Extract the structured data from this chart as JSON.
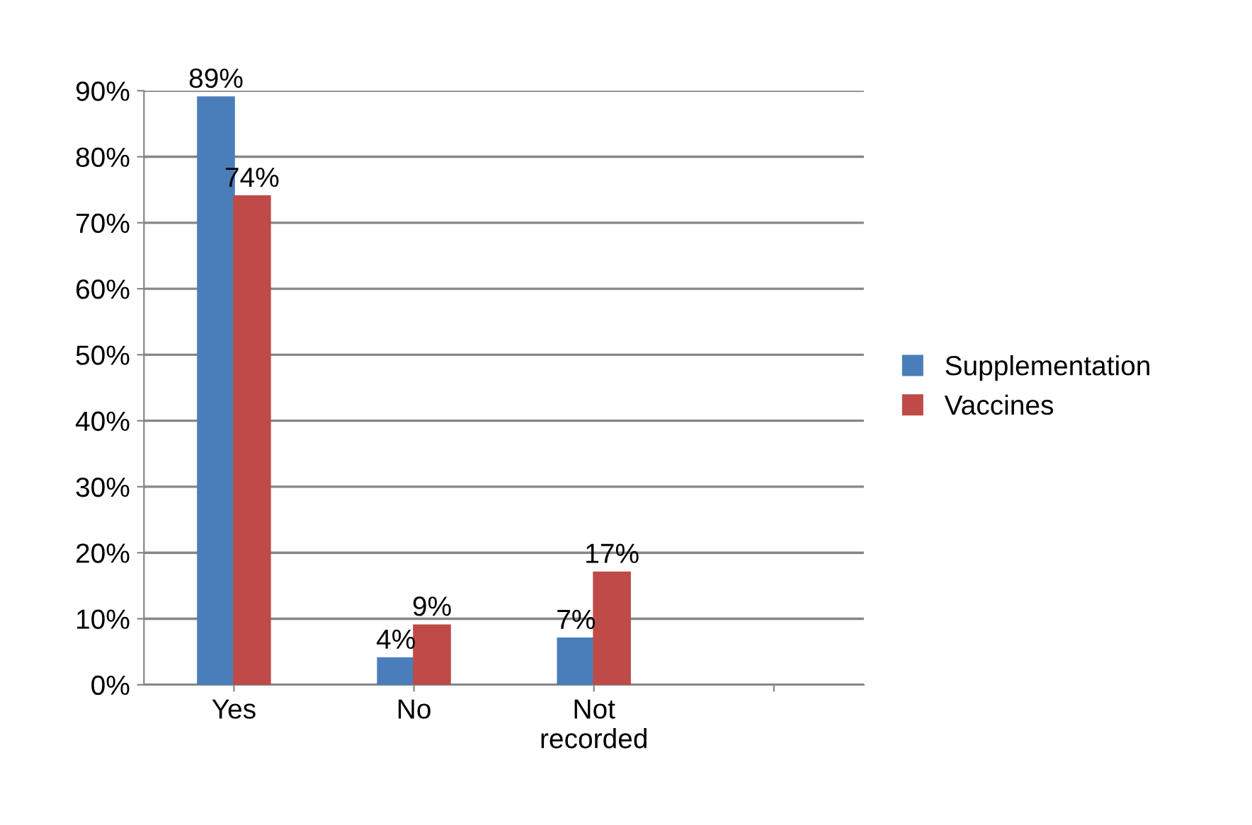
{
  "chart_data": {
    "type": "bar",
    "categories": [
      "Yes",
      "No",
      "Not recorded",
      null
    ],
    "series": [
      {
        "name": "Supplementation",
        "color": "#4a7ebb",
        "values": [
          89,
          4,
          7,
          null
        ],
        "value_labels": [
          "89%",
          "4%",
          "7%",
          null
        ]
      },
      {
        "name": "Vaccines",
        "color": "#be4b48",
        "values": [
          74,
          9,
          17,
          null
        ],
        "value_labels": [
          "74%",
          "9%",
          "17%",
          null
        ]
      }
    ],
    "ylim": [
      0,
      90
    ],
    "yticks": [
      {
        "value": 0,
        "label": "0%"
      },
      {
        "value": 10,
        "label": "10%"
      },
      {
        "value": 20,
        "label": "20%"
      },
      {
        "value": 30,
        "label": "30%"
      },
      {
        "value": 40,
        "label": "40%"
      },
      {
        "value": 50,
        "label": "50%"
      },
      {
        "value": 60,
        "label": "60%"
      },
      {
        "value": 70,
        "label": "70%"
      },
      {
        "value": 80,
        "label": "80%"
      },
      {
        "value": 90,
        "label": "90%"
      }
    ],
    "grid": "y",
    "legend": "right"
  }
}
